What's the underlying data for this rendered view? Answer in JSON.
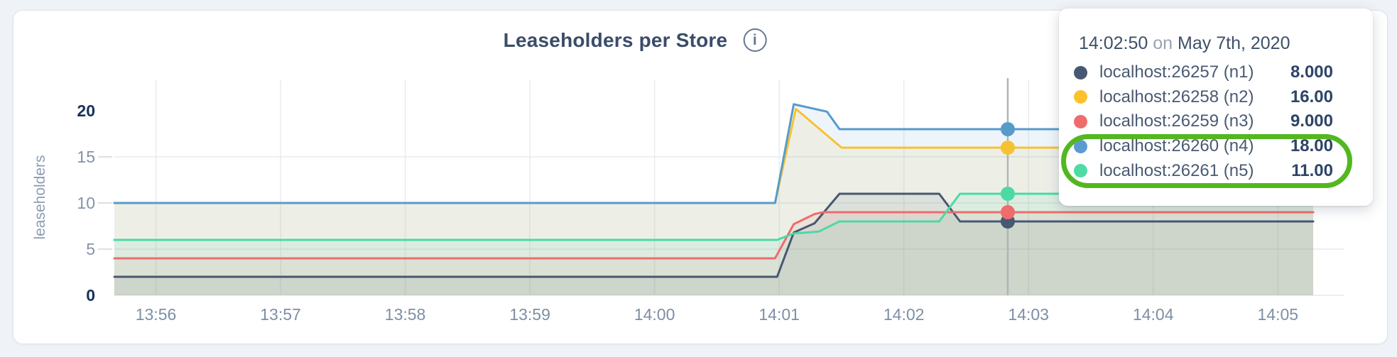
{
  "header": {
    "title": "Leaseholders per Store",
    "info_icon": "i"
  },
  "tooltip": {
    "time": "14:02:50",
    "on_word": "on",
    "date": "May 7th, 2020",
    "rows": [
      {
        "name": "localhost:26257 (n1)",
        "value": "8.000",
        "color": "#475872",
        "annotated": false
      },
      {
        "name": "localhost:26258 (n2)",
        "value": "16.00",
        "color": "#fdc12b",
        "annotated": false
      },
      {
        "name": "localhost:26259 (n3)",
        "value": "9.000",
        "color": "#ee6c6c",
        "annotated": false
      },
      {
        "name": "localhost:26260 (n4)",
        "value": "18.00",
        "color": "#5b9bd0",
        "annotated": true
      },
      {
        "name": "localhost:26261 (n5)",
        "value": "11.00",
        "color": "#4fdba4",
        "annotated": true
      }
    ]
  },
  "annotation": {
    "shape": "green-capsule-around-n4-n5",
    "color": "#53b71f"
  },
  "chart_data": {
    "type": "area",
    "title": "Leaseholders per Store",
    "ylabel": "leaseholders",
    "xlabel": "",
    "ylim": [
      0,
      20
    ],
    "grid": "on",
    "legend_position": "hover-tooltip",
    "yticks": [
      {
        "v": 0,
        "label": "0",
        "bold": true
      },
      {
        "v": 5,
        "label": "5",
        "bold": false
      },
      {
        "v": 10,
        "label": "10",
        "bold": false
      },
      {
        "v": 15,
        "label": "15",
        "bold": false
      },
      {
        "v": 20,
        "label": "20",
        "bold": true
      }
    ],
    "xticks": [
      {
        "t": 20,
        "label": "13:56"
      },
      {
        "t": 80,
        "label": "13:57"
      },
      {
        "t": 140,
        "label": "13:58"
      },
      {
        "t": 200,
        "label": "13:59"
      },
      {
        "t": 260,
        "label": "14:00"
      },
      {
        "t": 320,
        "label": "14:01"
      },
      {
        "t": 380,
        "label": "14:02"
      },
      {
        "t": 440,
        "label": "14:03"
      },
      {
        "t": 500,
        "label": "14:04"
      },
      {
        "t": 560,
        "label": "14:05"
      }
    ],
    "hover": {
      "t": 430,
      "time": "14:02:50"
    },
    "series": [
      {
        "name": "localhost:26257 (n1)",
        "color": "#475872",
        "hover_value": 8,
        "points": [
          [
            0,
            2
          ],
          [
            319,
            2
          ],
          [
            327,
            6.8
          ],
          [
            337,
            7.8
          ],
          [
            349,
            11
          ],
          [
            397,
            11
          ],
          [
            407,
            8
          ],
          [
            577,
            8
          ]
        ]
      },
      {
        "name": "localhost:26258 (n2)",
        "color": "#f6c233",
        "hover_value": 16,
        "points": [
          [
            0,
            10
          ],
          [
            318,
            10
          ],
          [
            328,
            20.2
          ],
          [
            350,
            16
          ],
          [
            577,
            16
          ]
        ]
      },
      {
        "name": "localhost:26259 (n3)",
        "color": "#ee6c6c",
        "hover_value": 9,
        "points": [
          [
            0,
            4
          ],
          [
            318,
            4
          ],
          [
            327,
            7.7
          ],
          [
            337,
            8.8
          ],
          [
            341,
            9
          ],
          [
            577,
            9
          ]
        ]
      },
      {
        "name": "localhost:26260 (n4)",
        "color": "#579bcb",
        "hover_value": 18,
        "points": [
          [
            0,
            10
          ],
          [
            318,
            10
          ],
          [
            327,
            20.7
          ],
          [
            343,
            19.9
          ],
          [
            349,
            18
          ],
          [
            577,
            18
          ]
        ]
      },
      {
        "name": "localhost:26261 (n5)",
        "color": "#4cd9a4",
        "hover_value": 11,
        "points": [
          [
            0,
            6
          ],
          [
            319,
            6
          ],
          [
            327,
            6.7
          ],
          [
            339,
            6.9
          ],
          [
            349,
            8
          ],
          [
            397,
            8
          ],
          [
            407,
            11
          ],
          [
            577,
            11
          ]
        ]
      }
    ]
  }
}
